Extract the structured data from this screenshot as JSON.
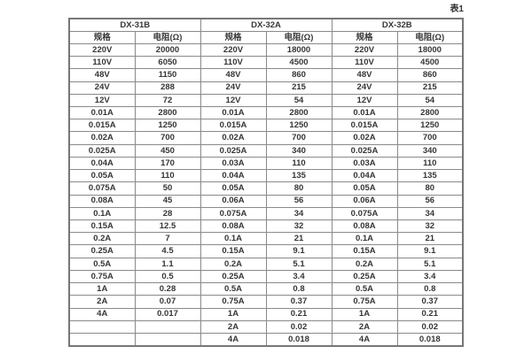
{
  "caption": "表1",
  "table": {
    "groups": [
      {
        "name": "DX-31B",
        "col_headers": [
          "规格",
          "电阻(Ω)"
        ]
      },
      {
        "name": "DX-32A",
        "col_headers": [
          "规格",
          "电阻(Ω)"
        ]
      },
      {
        "name": "DX-32B",
        "col_headers": [
          "规格",
          "电阻(Ω)"
        ]
      }
    ],
    "rows": [
      [
        "220V",
        "20000",
        "220V",
        "18000",
        "220V",
        "18000"
      ],
      [
        "110V",
        "6050",
        "110V",
        "4500",
        "110V",
        "4500"
      ],
      [
        "48V",
        "1150",
        "48V",
        "860",
        "48V",
        "860"
      ],
      [
        "24V",
        "288",
        "24V",
        "215",
        "24V",
        "215"
      ],
      [
        "12V",
        "72",
        "12V",
        "54",
        "12V",
        "54"
      ],
      [
        "0.01A",
        "2800",
        "0.01A",
        "2800",
        "0.01A",
        "2800"
      ],
      [
        "0.015A",
        "1250",
        "0.015A",
        "1250",
        "0.015A",
        "1250"
      ],
      [
        "0.02A",
        "700",
        "0.02A",
        "700",
        "0.02A",
        "700"
      ],
      [
        "0.025A",
        "450",
        "0.025A",
        "340",
        "0.025A",
        "340"
      ],
      [
        "0.04A",
        "170",
        "0.03A",
        "110",
        "0.03A",
        "110"
      ],
      [
        "0.05A",
        "110",
        "0.04A",
        "135",
        "0.04A",
        "135"
      ],
      [
        "0.075A",
        "50",
        "0.05A",
        "80",
        "0.05A",
        "80"
      ],
      [
        "0.08A",
        "45",
        "0.06A",
        "56",
        "0.06A",
        "56"
      ],
      [
        "0.1A",
        "28",
        "0.075A",
        "34",
        "0.075A",
        "34"
      ],
      [
        "0.15A",
        "12.5",
        "0.08A",
        "32",
        "0.08A",
        "32"
      ],
      [
        "0.2A",
        "7",
        "0.1A",
        "21",
        "0.1A",
        "21"
      ],
      [
        "0.25A",
        "4.5",
        "0.15A",
        "9.1",
        "0.15A",
        "9.1"
      ],
      [
        "0.5A",
        "1.1",
        "0.2A",
        "5.1",
        "0.2A",
        "5.1"
      ],
      [
        "0.75A",
        "0.5",
        "0.25A",
        "3.4",
        "0.25A",
        "3.4"
      ],
      [
        "1A",
        "0.28",
        "0.5A",
        "0.8",
        "0.5A",
        "0.8"
      ],
      [
        "2A",
        "0.07",
        "0.75A",
        "0.37",
        "0.75A",
        "0.37"
      ],
      [
        "4A",
        "0.017",
        "1A",
        "0.21",
        "1A",
        "0.21"
      ],
      [
        "",
        "",
        "2A",
        "0.02",
        "2A",
        "0.02"
      ],
      [
        "",
        "",
        "4A",
        "0.018",
        "4A",
        "0.018"
      ]
    ]
  },
  "colors": {
    "text": "#363636",
    "border": "#8a8a8a",
    "outer_border": "#777777",
    "background": "#ffffff"
  }
}
